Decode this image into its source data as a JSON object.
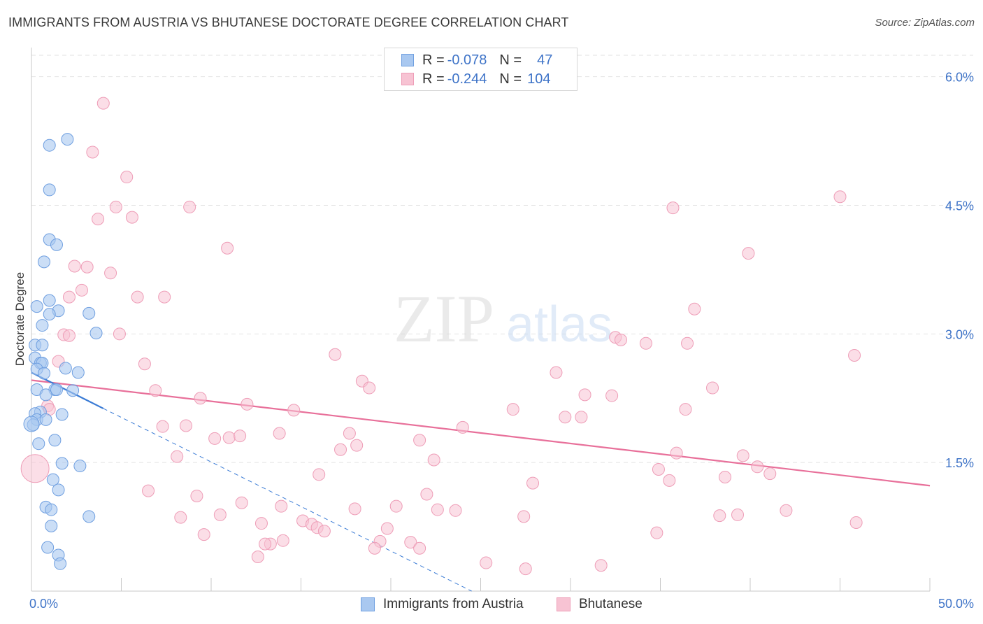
{
  "header": {
    "title": "IMMIGRANTS FROM AUSTRIA VS BHUTANESE DOCTORATE DEGREE CORRELATION CHART",
    "source": "Source: ZipAtlas.com"
  },
  "legend_top": {
    "rows": [
      {
        "r_label": "R =",
        "r_value": "-0.078",
        "n_label": "N =",
        "n_value": "47"
      },
      {
        "r_label": "R =",
        "r_value": "-0.244",
        "n_label": "N =",
        "n_value": "104"
      }
    ]
  },
  "legend_bottom": {
    "series": [
      {
        "name": "Immigrants from Austria"
      },
      {
        "name": "Bhutanese"
      }
    ]
  },
  "watermark": {
    "zip": "ZIP",
    "atlas": "atlas"
  },
  "colors": {
    "austria_fill": "#a9c8f0",
    "austria_stroke": "#6f9fe0",
    "austria_line": "#3a7bd5",
    "bhutanese_fill": "#f7c3d3",
    "bhutanese_stroke": "#ee9db7",
    "bhutanese_line": "#e8709a",
    "axis_text": "#3f74c8"
  },
  "chart_data": {
    "type": "scatter",
    "title": "IMMIGRANTS FROM AUSTRIA VS BHUTANESE DOCTORATE DEGREE CORRELATION CHART",
    "xlabel": "",
    "ylabel": "Doctorate Degree",
    "xlim": [
      0,
      50
    ],
    "ylim": [
      0,
      6.25
    ],
    "x_tick_labels": [
      "0.0%",
      "50.0%"
    ],
    "y_ticks": [
      1.5,
      3.0,
      4.5,
      6.0
    ],
    "y_tick_labels": [
      "1.5%",
      "3.0%",
      "4.5%",
      "6.0%"
    ],
    "grid": true,
    "series": [
      {
        "name": "Immigrants from Austria",
        "r": -0.078,
        "n": 47,
        "trend": {
          "x0": 0.0,
          "y0": 2.55,
          "x1": 4.0,
          "y1": 2.13,
          "dash_x1": 24.5,
          "dash_y1": 0.0
        },
        "points": [
          [
            2.0,
            5.27
          ],
          [
            1.0,
            5.2
          ],
          [
            1.0,
            4.68
          ],
          [
            1.0,
            4.1
          ],
          [
            1.4,
            4.04
          ],
          [
            0.7,
            3.84
          ],
          [
            1.0,
            3.39
          ],
          [
            0.3,
            3.32
          ],
          [
            1.5,
            3.27
          ],
          [
            1.0,
            3.23
          ],
          [
            3.2,
            3.24
          ],
          [
            0.6,
            3.1
          ],
          [
            3.6,
            3.01
          ],
          [
            0.2,
            2.87
          ],
          [
            0.6,
            2.87
          ],
          [
            0.2,
            2.72
          ],
          [
            0.5,
            2.66
          ],
          [
            0.6,
            2.66
          ],
          [
            0.3,
            2.59
          ],
          [
            1.9,
            2.6
          ],
          [
            0.7,
            2.54
          ],
          [
            2.6,
            2.55
          ],
          [
            0.3,
            2.35
          ],
          [
            1.3,
            2.35
          ],
          [
            1.4,
            2.35
          ],
          [
            2.3,
            2.34
          ],
          [
            0.8,
            2.29
          ],
          [
            0.5,
            2.09
          ],
          [
            0.2,
            2.07
          ],
          [
            1.7,
            2.06
          ],
          [
            0.3,
            2.0
          ],
          [
            0.8,
            2.0
          ],
          [
            0.1,
            1.94
          ],
          [
            1.3,
            1.76
          ],
          [
            0.4,
            1.72
          ],
          [
            1.7,
            1.49
          ],
          [
            2.7,
            1.46
          ],
          [
            1.2,
            1.3
          ],
          [
            1.5,
            1.18
          ],
          [
            0.8,
            0.98
          ],
          [
            1.1,
            0.95
          ],
          [
            3.2,
            0.87
          ],
          [
            1.1,
            0.76
          ],
          [
            0.9,
            0.51
          ],
          [
            1.5,
            0.42
          ],
          [
            1.6,
            0.32
          ],
          [
            0.0,
            1.95
          ]
        ]
      },
      {
        "name": "Bhutanese",
        "r": -0.244,
        "n": 104,
        "trend": {
          "x0": 0.0,
          "y0": 2.46,
          "x1": 50.0,
          "y1": 1.23
        },
        "points": [
          [
            4.0,
            5.69
          ],
          [
            3.4,
            5.12
          ],
          [
            5.3,
            4.83
          ],
          [
            4.7,
            4.48
          ],
          [
            8.8,
            4.48
          ],
          [
            3.7,
            4.34
          ],
          [
            5.6,
            4.36
          ],
          [
            10.9,
            4.0
          ],
          [
            2.4,
            3.79
          ],
          [
            3.1,
            3.78
          ],
          [
            4.4,
            3.71
          ],
          [
            2.8,
            3.51
          ],
          [
            2.1,
            3.43
          ],
          [
            5.9,
            3.43
          ],
          [
            7.4,
            3.43
          ],
          [
            1.8,
            2.99
          ],
          [
            4.9,
            3.0
          ],
          [
            2.1,
            2.98
          ],
          [
            1.5,
            2.68
          ],
          [
            6.3,
            2.65
          ],
          [
            16.9,
            2.76
          ],
          [
            18.4,
            2.45
          ],
          [
            18.8,
            2.37
          ],
          [
            6.9,
            2.34
          ],
          [
            9.4,
            2.25
          ],
          [
            12.0,
            2.18
          ],
          [
            14.6,
            2.11
          ],
          [
            0.9,
            2.16
          ],
          [
            1.0,
            2.12
          ],
          [
            7.3,
            1.92
          ],
          [
            8.6,
            1.93
          ],
          [
            10.2,
            1.78
          ],
          [
            11.0,
            1.79
          ],
          [
            11.6,
            1.81
          ],
          [
            13.8,
            1.84
          ],
          [
            17.7,
            1.84
          ],
          [
            8.1,
            1.57
          ],
          [
            17.2,
            1.65
          ],
          [
            18.1,
            1.7
          ],
          [
            21.6,
            1.76
          ],
          [
            22.4,
            1.53
          ],
          [
            16.0,
            1.36
          ],
          [
            6.5,
            1.17
          ],
          [
            9.2,
            1.11
          ],
          [
            11.7,
            1.03
          ],
          [
            10.5,
            0.89
          ],
          [
            8.3,
            0.86
          ],
          [
            9.6,
            0.66
          ],
          [
            12.8,
            0.79
          ],
          [
            13.9,
            0.99
          ],
          [
            15.1,
            0.82
          ],
          [
            15.6,
            0.78
          ],
          [
            15.9,
            0.74
          ],
          [
            16.3,
            0.7
          ],
          [
            13.3,
            0.55
          ],
          [
            13.0,
            0.55
          ],
          [
            14.0,
            0.59
          ],
          [
            12.6,
            0.4
          ],
          [
            18.0,
            0.96
          ],
          [
            19.4,
            0.58
          ],
          [
            19.8,
            0.73
          ],
          [
            20.3,
            0.99
          ],
          [
            21.1,
            0.57
          ],
          [
            21.6,
            0.5
          ],
          [
            19.1,
            0.5
          ],
          [
            22.0,
            1.13
          ],
          [
            22.6,
            0.95
          ],
          [
            23.6,
            0.94
          ],
          [
            24.0,
            1.91
          ],
          [
            25.3,
            0.33
          ],
          [
            26.8,
            2.12
          ],
          [
            27.4,
            0.87
          ],
          [
            27.5,
            0.26
          ],
          [
            27.9,
            1.26
          ],
          [
            29.2,
            2.55
          ],
          [
            29.7,
            2.03
          ],
          [
            30.6,
            2.03
          ],
          [
            30.8,
            2.29
          ],
          [
            31.7,
            0.3
          ],
          [
            32.3,
            2.28
          ],
          [
            32.5,
            2.96
          ],
          [
            32.8,
            2.93
          ],
          [
            34.2,
            2.89
          ],
          [
            34.8,
            0.68
          ],
          [
            34.9,
            1.42
          ],
          [
            35.5,
            1.29
          ],
          [
            35.9,
            1.61
          ],
          [
            35.7,
            4.47
          ],
          [
            36.5,
            2.89
          ],
          [
            36.9,
            3.29
          ],
          [
            36.4,
            2.12
          ],
          [
            37.9,
            2.37
          ],
          [
            38.3,
            0.88
          ],
          [
            38.6,
            1.33
          ],
          [
            39.3,
            0.89
          ],
          [
            39.6,
            1.58
          ],
          [
            39.9,
            3.94
          ],
          [
            40.4,
            1.45
          ],
          [
            41.1,
            1.37
          ],
          [
            42.0,
            0.94
          ],
          [
            45.0,
            4.6
          ],
          [
            45.8,
            2.75
          ],
          [
            45.9,
            0.8
          ],
          [
            0.2,
            1.43
          ]
        ]
      }
    ]
  }
}
